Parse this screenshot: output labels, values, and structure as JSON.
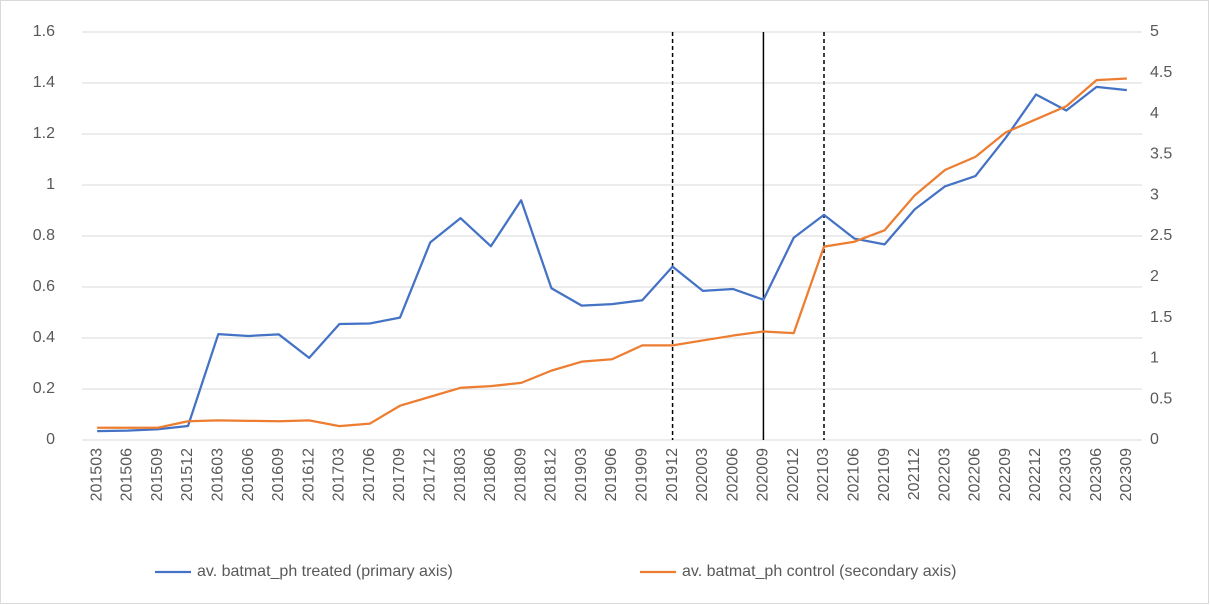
{
  "chart_data": {
    "type": "line",
    "categories": [
      "201503",
      "201506",
      "201509",
      "201512",
      "201603",
      "201606",
      "201609",
      "201612",
      "201703",
      "201706",
      "201709",
      "201712",
      "201803",
      "201806",
      "201809",
      "201812",
      "201903",
      "201906",
      "201909",
      "201912",
      "202003",
      "202006",
      "202009",
      "202012",
      "202103",
      "202106",
      "202109",
      "202112",
      "202203",
      "202206",
      "202209",
      "202212",
      "202303",
      "202306",
      "202309"
    ],
    "series": [
      {
        "name": "av. batmat_ph treated (primary axis)",
        "color": "#4472c4",
        "axis": "y",
        "values": [
          0.035,
          0.037,
          0.042,
          0.055,
          0.415,
          0.408,
          0.414,
          0.322,
          0.455,
          0.457,
          0.48,
          0.775,
          0.87,
          0.76,
          0.94,
          0.595,
          0.527,
          0.533,
          0.548,
          0.68,
          0.585,
          0.592,
          0.55,
          0.793,
          0.883,
          0.79,
          0.767,
          0.905,
          0.995,
          1.035,
          1.185,
          1.355,
          1.292,
          1.385,
          1.372
        ]
      },
      {
        "name": "av. batmat_ph control (secondary axis)",
        "color": "#ed7d31",
        "axis": "y2",
        "values": [
          0.15,
          0.15,
          0.15,
          0.23,
          0.24,
          0.235,
          0.23,
          0.24,
          0.17,
          0.2,
          0.42,
          0.53,
          0.64,
          0.66,
          0.7,
          0.85,
          0.96,
          0.99,
          1.16,
          1.16,
          1.22,
          1.28,
          1.33,
          1.31,
          2.37,
          2.43,
          2.57,
          3.0,
          3.31,
          3.47,
          3.77,
          3.93,
          4.09,
          4.41,
          4.43
        ]
      }
    ],
    "ylim": [
      0,
      1.6
    ],
    "yticks": [
      0,
      0.2,
      0.4,
      0.6,
      0.8,
      1,
      1.2,
      1.4,
      1.6
    ],
    "y2lim": [
      0,
      5
    ],
    "y2ticks": [
      0,
      0.5,
      1,
      1.5,
      2,
      2.5,
      3,
      3.5,
      4,
      4.5,
      5
    ],
    "grid": true,
    "legend": "bottom",
    "vlines": [
      {
        "index": 19,
        "style": "dashed"
      },
      {
        "index": 22,
        "style": "solid"
      },
      {
        "index": 24,
        "style": "dashed"
      }
    ]
  }
}
